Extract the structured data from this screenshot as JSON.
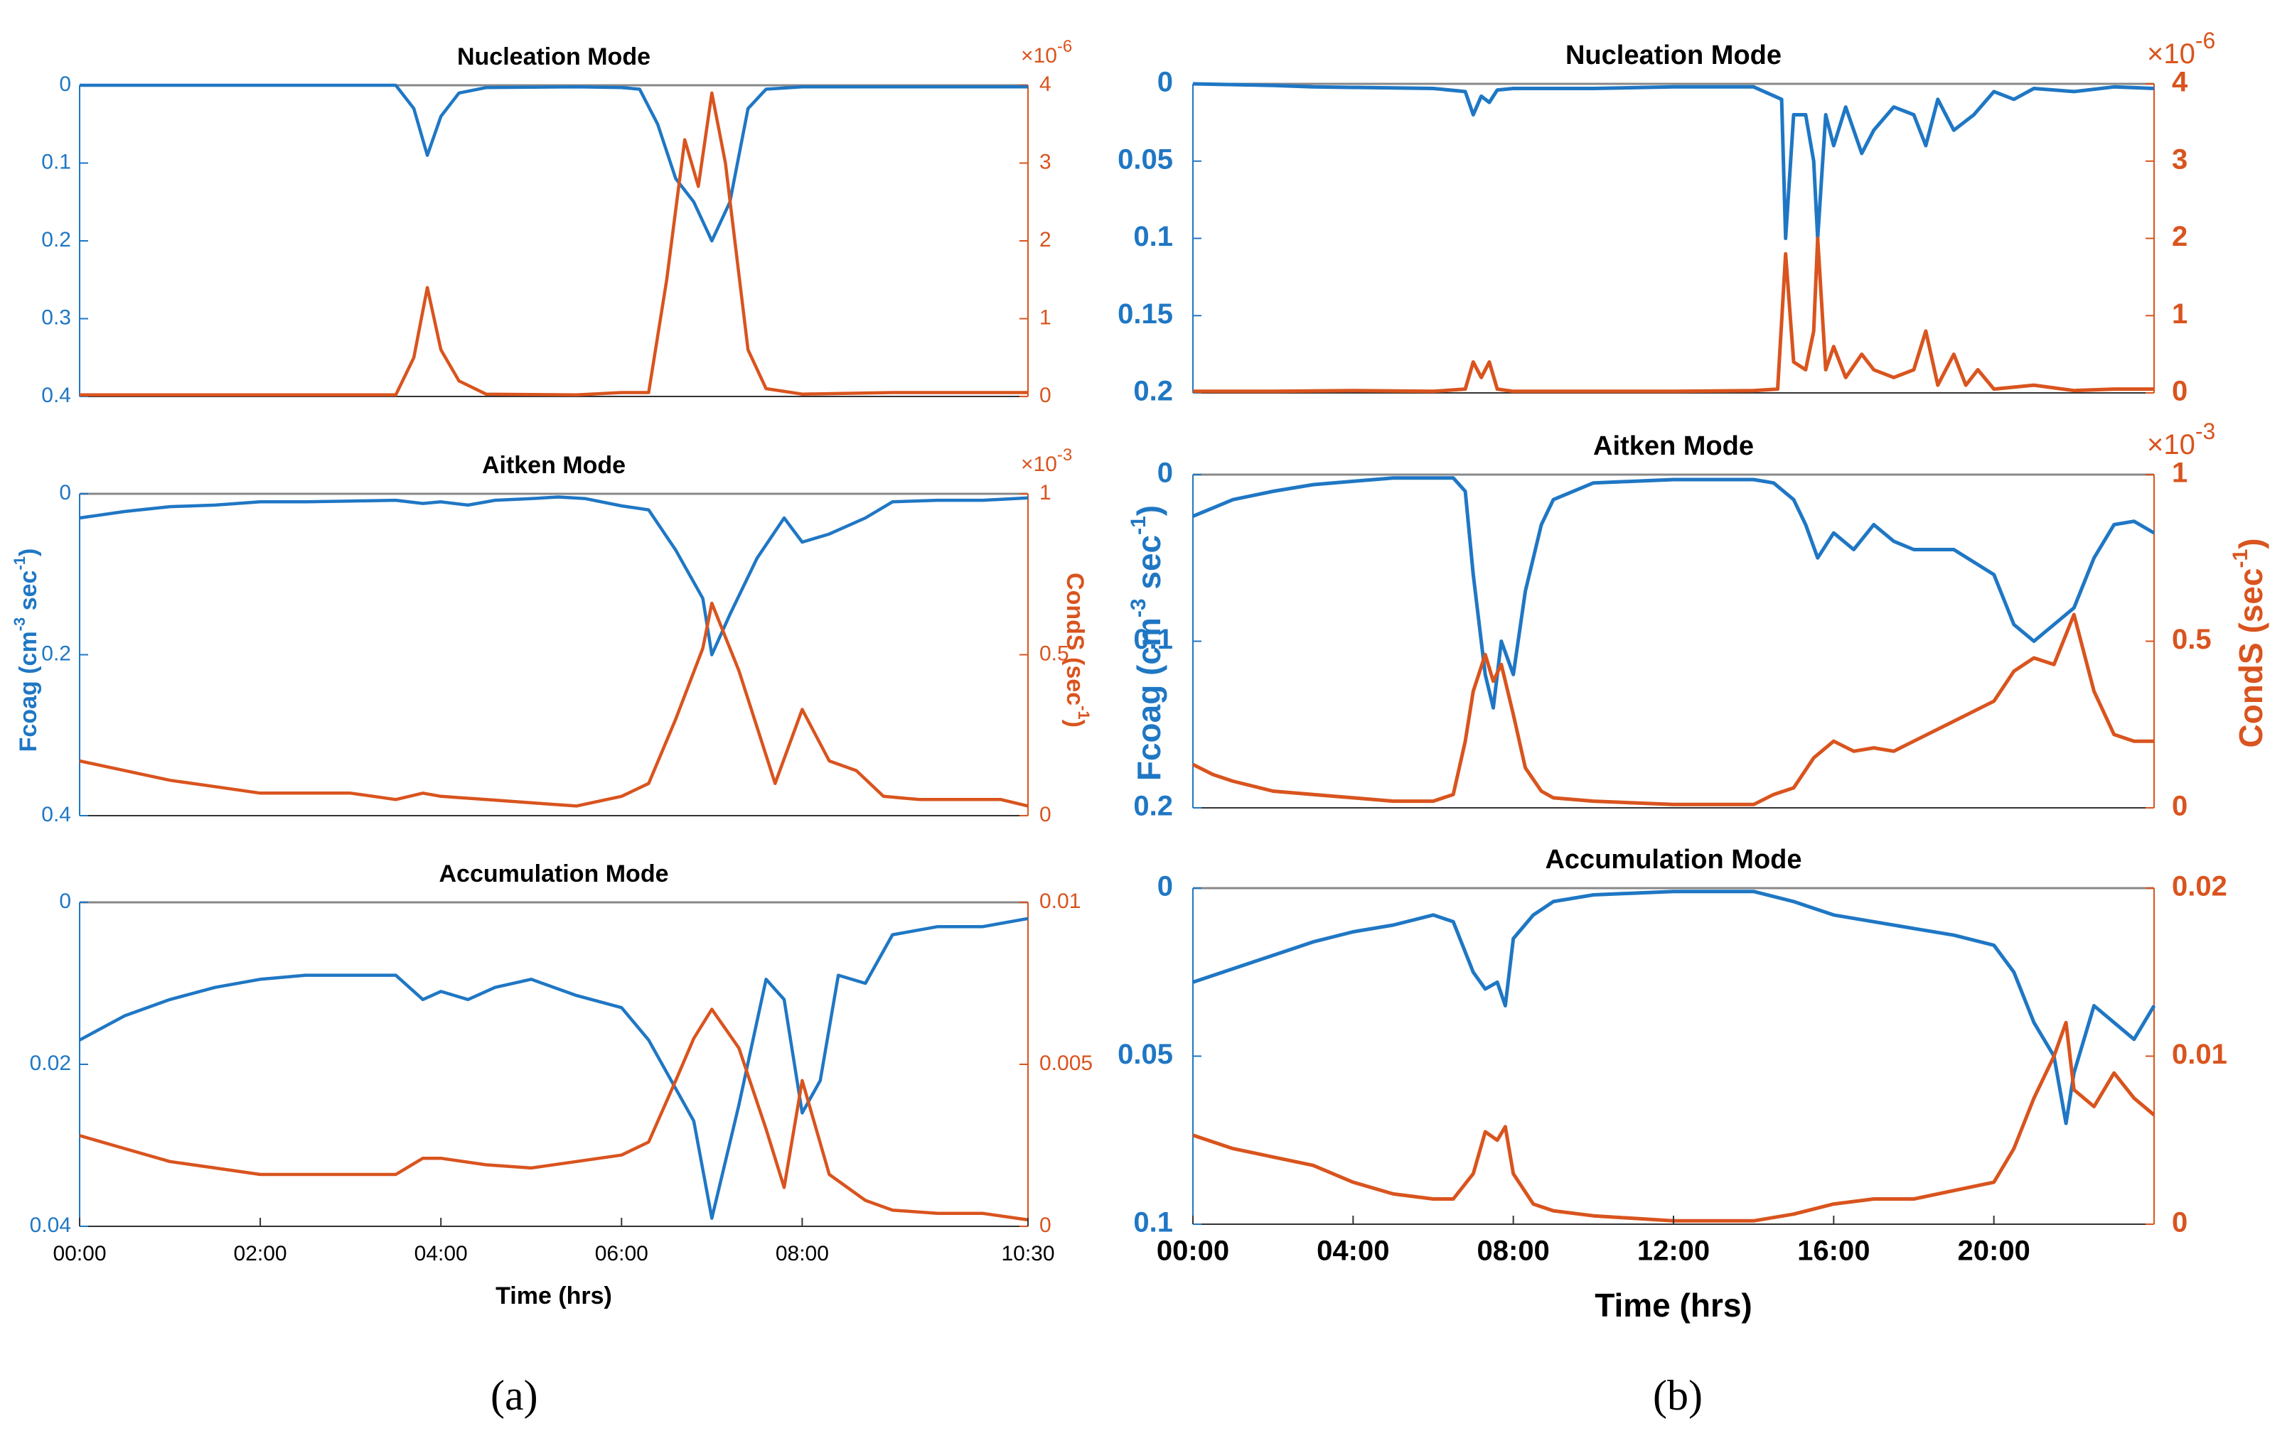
{
  "colors": {
    "fcoag": "#1f77c4",
    "conds": "#d9541e",
    "axis": "#333333",
    "zero": "#888888"
  },
  "panels": [
    {
      "label": "(a)",
      "ylabel_left": "Fcoag (cm^-3 sec^-1)",
      "ylabel_right": "CondS (sec^-1)",
      "xlabel": "Time (hrs)",
      "xticks": [
        "00:00",
        "02:00",
        "04:00",
        "06:00",
        "08:00",
        "10:30"
      ]
    },
    {
      "label": "(b)",
      "ylabel_left": "Fcoag (cm^-3 sec^-1)",
      "ylabel_right": "CondS (sec^-1)",
      "xlabel": "Time (hrs)",
      "xticks": [
        "00:00",
        "04:00",
        "08:00",
        "12:00",
        "16:00",
        "20:00"
      ]
    }
  ],
  "chart_data": [
    {
      "type": "line",
      "panel": "a",
      "title": "Nucleation Mode",
      "xlabel": "Time (hrs)",
      "x_range_hours": [
        0,
        10.5
      ],
      "left_axis": {
        "label": "Fcoag (cm^-3 sec^-1)",
        "ylim": [
          0,
          0.4
        ],
        "reversed": true,
        "ticks": [
          "0",
          "0.1",
          "0.2",
          "0.3",
          "0.4"
        ]
      },
      "right_axis": {
        "label": "CondS (sec^-1)",
        "ylim": [
          0,
          4
        ],
        "multiplier": "x10^-6",
        "ticks": [
          "0",
          "1",
          "2",
          "3",
          "4"
        ]
      },
      "series": [
        {
          "name": "Fcoag",
          "axis": "left",
          "x": [
            0,
            3.5,
            3.7,
            3.85,
            4.0,
            4.2,
            4.5,
            5.5,
            6.0,
            6.2,
            6.4,
            6.6,
            6.8,
            7.0,
            7.2,
            7.4,
            7.6,
            8.0,
            9.0,
            10.5
          ],
          "y": [
            0,
            0,
            0.03,
            0.09,
            0.04,
            0.01,
            0.003,
            0.002,
            0.003,
            0.005,
            0.05,
            0.12,
            0.15,
            0.2,
            0.15,
            0.03,
            0.005,
            0.002,
            0.002,
            0.002
          ]
        },
        {
          "name": "CondS",
          "axis": "right",
          "x": [
            0,
            3.5,
            3.7,
            3.85,
            4.0,
            4.2,
            4.5,
            5.5,
            6.0,
            6.3,
            6.5,
            6.7,
            6.85,
            7.0,
            7.15,
            7.4,
            7.6,
            8.0,
            9.0,
            10.5
          ],
          "y": [
            0.02,
            0.02,
            0.5,
            1.4,
            0.6,
            0.2,
            0.03,
            0.02,
            0.05,
            0.05,
            1.5,
            3.3,
            2.7,
            3.9,
            3.0,
            0.6,
            0.1,
            0.03,
            0.05,
            0.05
          ]
        }
      ]
    },
    {
      "type": "line",
      "panel": "a",
      "title": "Aitken Mode",
      "xlabel": "Time (hrs)",
      "x_range_hours": [
        0,
        10.5
      ],
      "left_axis": {
        "label": "Fcoag (cm^-3 sec^-1)",
        "ylim": [
          0,
          0.4
        ],
        "reversed": true,
        "ticks": [
          "0",
          "0.2",
          "0.4"
        ]
      },
      "right_axis": {
        "label": "CondS (sec^-1)",
        "ylim": [
          0,
          1
        ],
        "multiplier": "x10^-3",
        "ticks": [
          "0",
          "0.5",
          "1"
        ]
      },
      "series": [
        {
          "name": "Fcoag",
          "axis": "left",
          "x": [
            0,
            0.5,
            1.0,
            1.5,
            2.0,
            2.5,
            3.0,
            3.5,
            3.8,
            4.0,
            4.3,
            4.6,
            5.0,
            5.3,
            5.6,
            6.0,
            6.3,
            6.6,
            6.9,
            7.0,
            7.2,
            7.5,
            7.8,
            8.0,
            8.3,
            8.7,
            9.0,
            9.5,
            10.0,
            10.5
          ],
          "y": [
            0.03,
            0.022,
            0.016,
            0.014,
            0.01,
            0.01,
            0.009,
            0.008,
            0.012,
            0.01,
            0.014,
            0.008,
            0.006,
            0.004,
            0.006,
            0.015,
            0.02,
            0.07,
            0.13,
            0.2,
            0.15,
            0.08,
            0.03,
            0.06,
            0.05,
            0.03,
            0.01,
            0.008,
            0.008,
            0.005
          ]
        },
        {
          "name": "CondS",
          "axis": "right",
          "x": [
            0,
            0.5,
            1.0,
            1.5,
            2.0,
            2.5,
            3.0,
            3.5,
            3.8,
            4.0,
            4.5,
            5.0,
            5.5,
            6.0,
            6.3,
            6.6,
            6.9,
            7.0,
            7.3,
            7.7,
            8.0,
            8.3,
            8.6,
            8.9,
            9.3,
            9.8,
            10.2,
            10.5
          ],
          "y": [
            0.17,
            0.14,
            0.11,
            0.09,
            0.07,
            0.07,
            0.07,
            0.05,
            0.07,
            0.06,
            0.05,
            0.04,
            0.03,
            0.06,
            0.1,
            0.3,
            0.52,
            0.66,
            0.45,
            0.1,
            0.33,
            0.17,
            0.14,
            0.06,
            0.05,
            0.05,
            0.05,
            0.03
          ]
        }
      ]
    },
    {
      "type": "line",
      "panel": "a",
      "title": "Accumulation Mode",
      "xlabel": "Time (hrs)",
      "x_range_hours": [
        0,
        10.5
      ],
      "left_axis": {
        "label": "Fcoag (cm^-3 sec^-1)",
        "ylim": [
          0,
          0.04
        ],
        "reversed": true,
        "ticks": [
          "0",
          "0.02",
          "0.04"
        ]
      },
      "right_axis": {
        "label": "CondS (sec^-1)",
        "ylim": [
          0,
          0.01
        ],
        "ticks": [
          "0",
          "0.005",
          "0.01"
        ]
      },
      "series": [
        {
          "name": "Fcoag",
          "axis": "left",
          "x": [
            0,
            0.5,
            1.0,
            1.5,
            2.0,
            2.5,
            3.0,
            3.5,
            3.8,
            4.0,
            4.3,
            4.6,
            5.0,
            5.5,
            6.0,
            6.3,
            6.6,
            6.8,
            7.0,
            7.3,
            7.6,
            7.8,
            8.0,
            8.2,
            8.4,
            8.7,
            9.0,
            9.5,
            10.0,
            10.5
          ],
          "y": [
            0.017,
            0.014,
            0.012,
            0.0105,
            0.0095,
            0.009,
            0.009,
            0.009,
            0.012,
            0.011,
            0.012,
            0.0105,
            0.0095,
            0.0115,
            0.013,
            0.017,
            0.023,
            0.027,
            0.039,
            0.025,
            0.0095,
            0.012,
            0.026,
            0.022,
            0.009,
            0.01,
            0.004,
            0.003,
            0.003,
            0.002
          ]
        },
        {
          "name": "CondS",
          "axis": "right",
          "x": [
            0,
            0.5,
            1.0,
            1.5,
            2.0,
            2.5,
            3.0,
            3.5,
            3.8,
            4.0,
            4.5,
            5.0,
            5.5,
            6.0,
            6.3,
            6.6,
            6.8,
            7.0,
            7.3,
            7.6,
            7.8,
            8.0,
            8.3,
            8.7,
            9.0,
            9.5,
            10.0,
            10.5
          ],
          "y": [
            0.0028,
            0.0024,
            0.002,
            0.0018,
            0.0016,
            0.0016,
            0.0016,
            0.0016,
            0.0021,
            0.0021,
            0.0019,
            0.0018,
            0.002,
            0.0022,
            0.0026,
            0.0045,
            0.0058,
            0.0067,
            0.0055,
            0.003,
            0.0012,
            0.0045,
            0.0016,
            0.0008,
            0.0005,
            0.0004,
            0.0004,
            0.0002
          ]
        }
      ]
    },
    {
      "type": "line",
      "panel": "b",
      "title": "Nucleation Mode",
      "xlabel": "Time (hrs)",
      "x_range_hours": [
        0,
        24
      ],
      "left_axis": {
        "label": "Fcoag (cm^-3 sec^-1)",
        "ylim": [
          0,
          0.2
        ],
        "reversed": true,
        "ticks": [
          "0",
          "0.05",
          "0.1",
          "0.15",
          "0.2"
        ]
      },
      "right_axis": {
        "label": "CondS (sec^-1)",
        "ylim": [
          0,
          4
        ],
        "multiplier": "x10^-6",
        "ticks": [
          "0",
          "1",
          "2",
          "3",
          "4"
        ]
      },
      "series": [
        {
          "name": "Fcoag",
          "axis": "left",
          "x": [
            0,
            2,
            3,
            6,
            6.8,
            7.0,
            7.2,
            7.4,
            7.6,
            8,
            10,
            12,
            14,
            14.7,
            14.8,
            15.0,
            15.3,
            15.5,
            15.6,
            15.8,
            16.0,
            16.3,
            16.7,
            17.0,
            17.5,
            18.0,
            18.3,
            18.6,
            19.0,
            19.5,
            20.0,
            20.5,
            21.0,
            22.0,
            23.0,
            24
          ],
          "y": [
            0,
            0.001,
            0.002,
            0.003,
            0.005,
            0.02,
            0.008,
            0.012,
            0.004,
            0.003,
            0.003,
            0.002,
            0.002,
            0.01,
            0.1,
            0.02,
            0.02,
            0.05,
            0.1,
            0.02,
            0.04,
            0.015,
            0.045,
            0.03,
            0.015,
            0.02,
            0.04,
            0.01,
            0.03,
            0.02,
            0.005,
            0.01,
            0.003,
            0.005,
            0.002,
            0.003
          ]
        },
        {
          "name": "CondS",
          "axis": "right",
          "x": [
            0,
            2,
            4,
            6,
            6.8,
            7.0,
            7.2,
            7.4,
            7.6,
            8,
            10,
            12,
            14,
            14.6,
            14.8,
            15.0,
            15.3,
            15.5,
            15.6,
            15.8,
            16.0,
            16.3,
            16.7,
            17.0,
            17.5,
            18.0,
            18.3,
            18.6,
            19.0,
            19.3,
            19.6,
            20.0,
            21.0,
            22.0,
            23.0,
            24
          ],
          "y": [
            0.02,
            0.02,
            0.03,
            0.02,
            0.05,
            0.4,
            0.2,
            0.4,
            0.05,
            0.02,
            0.02,
            0.02,
            0.03,
            0.05,
            1.8,
            0.4,
            0.3,
            0.8,
            2.0,
            0.3,
            0.6,
            0.2,
            0.5,
            0.3,
            0.2,
            0.3,
            0.8,
            0.1,
            0.5,
            0.1,
            0.3,
            0.05,
            0.1,
            0.03,
            0.05,
            0.05
          ]
        }
      ]
    },
    {
      "type": "line",
      "panel": "b",
      "title": "Aitken Mode",
      "xlabel": "Time (hrs)",
      "x_range_hours": [
        0,
        24
      ],
      "left_axis": {
        "label": "Fcoag (cm^-3 sec^-1)",
        "ylim": [
          0,
          0.2
        ],
        "reversed": true,
        "ticks": [
          "0",
          "0.1",
          "0.2"
        ]
      },
      "right_axis": {
        "label": "CondS (sec^-1)",
        "ylim": [
          0,
          1
        ],
        "multiplier": "x10^-3",
        "ticks": [
          "0",
          "0.5",
          "1"
        ]
      },
      "series": [
        {
          "name": "Fcoag",
          "axis": "left",
          "x": [
            0,
            0.5,
            1,
            2,
            3,
            4,
            5,
            6,
            6.5,
            6.8,
            7.0,
            7.3,
            7.5,
            7.7,
            8.0,
            8.3,
            8.7,
            9.0,
            10,
            12,
            14,
            14.5,
            15.0,
            15.3,
            15.6,
            16.0,
            16.5,
            17.0,
            17.5,
            18.0,
            19.0,
            20.0,
            20.5,
            21.0,
            21.5,
            22.0,
            22.5,
            23.0,
            23.5,
            24
          ],
          "y": [
            0.025,
            0.02,
            0.015,
            0.01,
            0.006,
            0.004,
            0.002,
            0.002,
            0.002,
            0.01,
            0.06,
            0.12,
            0.14,
            0.1,
            0.12,
            0.07,
            0.03,
            0.015,
            0.005,
            0.003,
            0.003,
            0.005,
            0.015,
            0.03,
            0.05,
            0.035,
            0.045,
            0.03,
            0.04,
            0.045,
            0.045,
            0.06,
            0.09,
            0.1,
            0.09,
            0.08,
            0.05,
            0.03,
            0.028,
            0.035
          ]
        },
        {
          "name": "CondS",
          "axis": "right",
          "x": [
            0,
            0.5,
            1,
            2,
            3,
            4,
            5,
            6,
            6.5,
            6.8,
            7.0,
            7.3,
            7.5,
            7.7,
            8.0,
            8.3,
            8.7,
            9.0,
            10,
            12,
            14,
            14.5,
            15.0,
            15.5,
            16.0,
            16.5,
            17.0,
            17.5,
            18.0,
            19.0,
            20.0,
            20.5,
            21.0,
            21.5,
            22.0,
            22.5,
            23.0,
            23.5,
            24
          ],
          "y": [
            0.13,
            0.1,
            0.08,
            0.05,
            0.04,
            0.03,
            0.02,
            0.02,
            0.04,
            0.2,
            0.35,
            0.46,
            0.38,
            0.43,
            0.28,
            0.12,
            0.05,
            0.03,
            0.02,
            0.01,
            0.01,
            0.04,
            0.06,
            0.15,
            0.2,
            0.17,
            0.18,
            0.17,
            0.2,
            0.26,
            0.32,
            0.41,
            0.45,
            0.43,
            0.58,
            0.35,
            0.22,
            0.2,
            0.2
          ]
        }
      ]
    },
    {
      "type": "line",
      "panel": "b",
      "title": "Accumulation Mode",
      "xlabel": "Time (hrs)",
      "x_range_hours": [
        0,
        24
      ],
      "left_axis": {
        "label": "Fcoag (cm^-3 sec^-1)",
        "ylim": [
          0,
          0.1
        ],
        "reversed": true,
        "ticks": [
          "0",
          "0.05",
          "0.1"
        ]
      },
      "right_axis": {
        "label": "CondS (sec^-1)",
        "ylim": [
          0,
          0.02
        ],
        "ticks": [
          "0",
          "0.01",
          "0.02"
        ]
      },
      "series": [
        {
          "name": "Fcoag",
          "axis": "left",
          "x": [
            0,
            1,
            2,
            3,
            4,
            5,
            6,
            6.5,
            7.0,
            7.3,
            7.6,
            7.8,
            8.0,
            8.5,
            9,
            10,
            12,
            14,
            15,
            16,
            17,
            18,
            19,
            20,
            20.5,
            21.0,
            21.5,
            21.8,
            22.0,
            22.5,
            23.0,
            23.5,
            24
          ],
          "y": [
            0.028,
            0.024,
            0.02,
            0.016,
            0.013,
            0.011,
            0.008,
            0.01,
            0.025,
            0.03,
            0.028,
            0.035,
            0.015,
            0.008,
            0.004,
            0.002,
            0.001,
            0.001,
            0.004,
            0.008,
            0.01,
            0.012,
            0.014,
            0.017,
            0.025,
            0.04,
            0.05,
            0.07,
            0.055,
            0.035,
            0.04,
            0.045,
            0.035
          ]
        },
        {
          "name": "CondS",
          "axis": "right",
          "x": [
            0,
            1,
            2,
            3,
            4,
            5,
            6,
            6.5,
            7.0,
            7.3,
            7.6,
            7.8,
            8.0,
            8.5,
            9,
            10,
            12,
            14,
            15,
            16,
            17,
            18,
            19,
            20,
            20.5,
            21.0,
            21.5,
            21.8,
            22.0,
            22.5,
            23.0,
            23.5,
            24
          ],
          "y": [
            0.0053,
            0.0045,
            0.004,
            0.0035,
            0.0025,
            0.0018,
            0.0015,
            0.0015,
            0.003,
            0.0055,
            0.005,
            0.0058,
            0.003,
            0.0012,
            0.0008,
            0.0005,
            0.0002,
            0.0002,
            0.0006,
            0.0012,
            0.0015,
            0.0015,
            0.002,
            0.0025,
            0.0045,
            0.0075,
            0.01,
            0.012,
            0.008,
            0.007,
            0.009,
            0.0075,
            0.0065
          ]
        }
      ]
    }
  ]
}
